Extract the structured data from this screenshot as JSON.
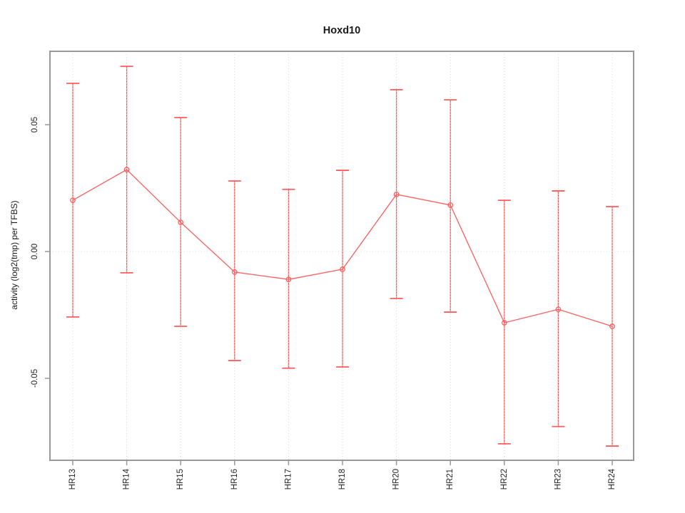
{
  "chart_data": {
    "type": "line",
    "title": "Hoxd10",
    "xlabel": "",
    "ylabel": "activity (log2(tmp) per TFBS)",
    "categories": [
      "HR13",
      "HR14",
      "HR15",
      "HR16",
      "HR17",
      "HR18",
      "HR20",
      "HR21",
      "HR22",
      "HR23",
      "HR24"
    ],
    "series": [
      {
        "name": "activity",
        "values": [
          0.0202,
          0.0323,
          0.0115,
          -0.0081,
          -0.011,
          -0.007,
          0.0225,
          0.0183,
          -0.0281,
          -0.0228,
          -0.0295
        ],
        "error_upper": [
          0.0663,
          0.073,
          0.0528,
          0.0278,
          0.0245,
          0.032,
          0.0638,
          0.0598,
          0.0202,
          0.0239,
          0.0177
        ],
        "error_lower": [
          -0.0258,
          -0.0084,
          -0.0295,
          -0.043,
          -0.046,
          -0.0455,
          -0.0185,
          -0.0239,
          -0.0758,
          -0.069,
          -0.0767
        ]
      }
    ],
    "ylim": [
      -0.0823,
      0.0789
    ],
    "yticks": [
      -0.05,
      0.0,
      0.05
    ],
    "ytick_labels": [
      "-0.05",
      "0.00",
      "0.05"
    ],
    "legend": "none",
    "grid": "dotted vertical line at each category; dotted horizontal line at y=0",
    "point_style": "open-circle",
    "error_bar_caps": true,
    "colors": {
      "series": "#ff5d5d",
      "axis_box": "#999999",
      "grid_dots": "#d4d4d4",
      "zero_line_dots": "#dedede",
      "text": "#262626"
    }
  }
}
